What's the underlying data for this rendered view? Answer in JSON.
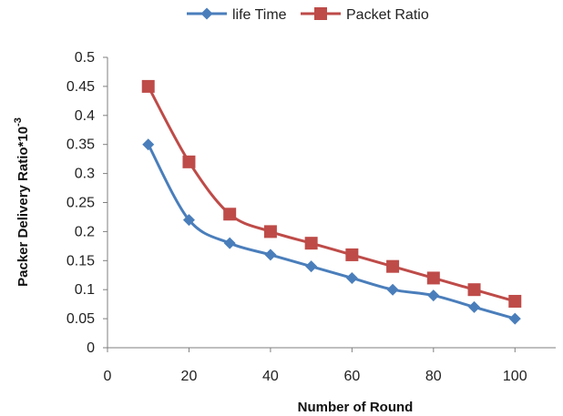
{
  "chart_data": {
    "type": "line",
    "title": "",
    "xlabel": "Number of Round",
    "ylabel": "Packer Delivery Ratio*10",
    "ylabel_exponent": "-3",
    "xlim": [
      0,
      110
    ],
    "ylim": [
      0,
      0.5
    ],
    "xticks": [
      0,
      20,
      40,
      60,
      80,
      100
    ],
    "yticks": [
      0,
      0.05,
      0.1,
      0.15,
      0.2,
      0.25,
      0.3,
      0.35,
      0.4,
      0.45,
      0.5
    ],
    "xtick_labels": [
      "0",
      "20",
      "40",
      "60",
      "80",
      "100"
    ],
    "ytick_labels": [
      "0",
      "0.05",
      "0.1",
      "0.15",
      "0.2",
      "0.25",
      "0.3",
      "0.35",
      "0.4",
      "0.45",
      "0.5"
    ],
    "grid": false,
    "legend_position": "top",
    "x": [
      10,
      20,
      30,
      40,
      50,
      60,
      70,
      80,
      90,
      100
    ],
    "series": [
      {
        "name": "life Time",
        "color": "#4A7EBB",
        "marker": "diamond",
        "values": [
          0.35,
          0.22,
          0.18,
          0.16,
          0.14,
          0.12,
          0.1,
          0.09,
          0.07,
          0.05
        ]
      },
      {
        "name": "Packet Ratio",
        "color": "#BE4B48",
        "marker": "square",
        "values": [
          0.45,
          0.32,
          0.23,
          0.2,
          0.18,
          0.16,
          0.14,
          0.12,
          0.1,
          0.08
        ]
      }
    ]
  }
}
